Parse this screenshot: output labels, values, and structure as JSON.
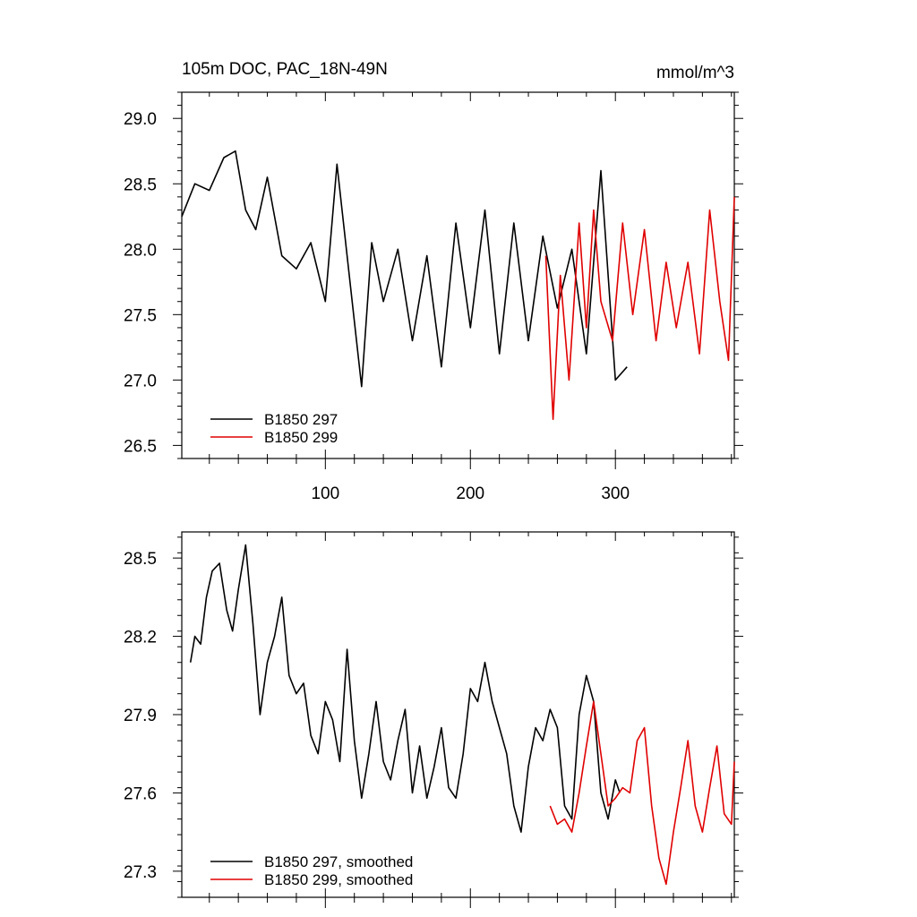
{
  "title": "105m DOC, PAC_18N-49N",
  "units": "mmol/m^3",
  "colors": {
    "series1": "#000000",
    "series2": "#e00000"
  },
  "chart_data": [
    {
      "type": "line",
      "title": "105m DOC, PAC_18N-49N",
      "units": "mmol/m^3",
      "xlim": [
        1,
        382
      ],
      "ylim": [
        26.4,
        29.2
      ],
      "xticks": [
        100,
        200,
        300
      ],
      "xtick_labels": [
        "100",
        "200",
        "300"
      ],
      "yticks": [
        26.5,
        27.0,
        27.5,
        28.0,
        28.5,
        29.0
      ],
      "ytick_labels": [
        "26.5",
        "27.0",
        "27.5",
        "28.0",
        "28.5",
        "29.0"
      ],
      "legend_position": "bottom-left",
      "series": [
        {
          "name": "B1850 297",
          "color": "#000000",
          "x": [
            1,
            10,
            20,
            30,
            38,
            45,
            52,
            60,
            70,
            80,
            90,
            100,
            108,
            115,
            125,
            132,
            140,
            150,
            160,
            170,
            180,
            190,
            200,
            210,
            220,
            230,
            240,
            250,
            260,
            270,
            280,
            290,
            300,
            308
          ],
          "y": [
            28.25,
            28.5,
            28.45,
            28.7,
            28.75,
            28.3,
            28.15,
            28.55,
            27.95,
            27.85,
            28.05,
            27.6,
            28.65,
            27.95,
            26.95,
            28.05,
            27.6,
            28.0,
            27.3,
            27.95,
            27.1,
            28.2,
            27.4,
            28.3,
            27.2,
            28.2,
            27.3,
            28.1,
            27.55,
            28.0,
            27.2,
            28.6,
            27.0,
            27.1
          ]
        },
        {
          "name": "B1850 299",
          "color": "#e00000",
          "x": [
            252,
            257,
            262,
            268,
            275,
            280,
            285,
            290,
            298,
            305,
            312,
            320,
            328,
            335,
            342,
            350,
            358,
            365,
            372,
            378,
            382
          ],
          "y": [
            27.95,
            26.7,
            27.8,
            27.0,
            28.2,
            27.4,
            28.3,
            27.6,
            27.3,
            28.2,
            27.5,
            28.15,
            27.3,
            27.9,
            27.4,
            27.9,
            27.2,
            28.3,
            27.6,
            27.15,
            28.4
          ]
        }
      ]
    },
    {
      "type": "line",
      "xlim": [
        1,
        382
      ],
      "ylim": [
        27.2,
        28.6
      ],
      "xticks": [
        100,
        200,
        300
      ],
      "yticks": [
        27.3,
        27.6,
        27.9,
        28.2,
        28.5
      ],
      "ytick_labels": [
        "27.3",
        "27.6",
        "27.9",
        "28.2",
        "28.5"
      ],
      "legend_position": "bottom-left",
      "series": [
        {
          "name": "B1850 297, smoothed",
          "color": "#000000",
          "x": [
            7,
            10,
            14,
            18,
            22,
            27,
            32,
            36,
            40,
            45,
            50,
            55,
            60,
            65,
            70,
            75,
            80,
            85,
            90,
            95,
            100,
            105,
            110,
            115,
            120,
            125,
            130,
            135,
            140,
            145,
            150,
            155,
            160,
            165,
            170,
            175,
            180,
            185,
            190,
            195,
            200,
            205,
            210,
            215,
            220,
            225,
            230,
            235,
            240,
            245,
            250,
            255,
            260,
            265,
            270,
            275,
            280,
            285,
            290,
            295,
            300,
            303
          ],
          "y": [
            28.1,
            28.2,
            28.17,
            28.35,
            28.45,
            28.48,
            28.3,
            28.22,
            28.38,
            28.55,
            28.25,
            27.9,
            28.1,
            28.2,
            28.35,
            28.05,
            27.98,
            28.02,
            27.82,
            27.75,
            27.95,
            27.88,
            27.72,
            28.15,
            27.8,
            27.58,
            27.75,
            27.95,
            27.72,
            27.65,
            27.8,
            27.92,
            27.6,
            27.78,
            27.58,
            27.7,
            27.85,
            27.62,
            27.58,
            27.75,
            28.0,
            27.95,
            28.1,
            27.95,
            27.85,
            27.75,
            27.55,
            27.45,
            27.7,
            27.85,
            27.8,
            27.92,
            27.85,
            27.55,
            27.5,
            27.9,
            28.05,
            27.95,
            27.6,
            27.5,
            27.65,
            27.6
          ]
        },
        {
          "name": "B1850 299, smoothed",
          "color": "#e00000",
          "x": [
            255,
            260,
            265,
            270,
            275,
            280,
            285,
            290,
            295,
            300,
            305,
            310,
            315,
            320,
            325,
            330,
            335,
            340,
            345,
            350,
            355,
            360,
            365,
            370,
            375,
            380,
            382
          ],
          "y": [
            27.55,
            27.48,
            27.5,
            27.45,
            27.6,
            27.78,
            27.95,
            27.75,
            27.55,
            27.58,
            27.62,
            27.6,
            27.8,
            27.85,
            27.55,
            27.35,
            27.25,
            27.45,
            27.62,
            27.8,
            27.55,
            27.45,
            27.62,
            27.78,
            27.52,
            27.48,
            27.72
          ]
        }
      ]
    }
  ]
}
